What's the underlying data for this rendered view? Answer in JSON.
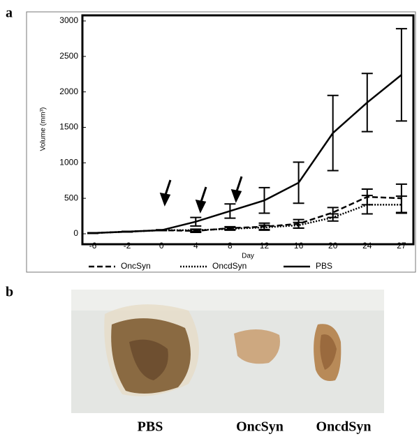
{
  "panel_labels": [
    "a",
    "b"
  ],
  "chart_data": {
    "type": "line",
    "x_label": "Day",
    "y_label": "Volume (mm³)",
    "categories": [
      "-6",
      "-2",
      "0",
      "4",
      "8",
      "12",
      "16",
      "20",
      "24",
      "27"
    ],
    "ylim": [
      0,
      3000
    ],
    "yticks": [
      0,
      500,
      1000,
      1500,
      2000,
      2500,
      3000
    ],
    "series": [
      {
        "name": "OncSyn",
        "color": "#000000",
        "style": "dashed",
        "values": [
          10,
          30,
          50,
          40,
          80,
          100,
          140,
          300,
          520,
          500
        ],
        "errors": [
          5,
          5,
          5,
          20,
          20,
          50,
          60,
          70,
          110,
          200
        ]
      },
      {
        "name": "OncdSyn",
        "color": "#000000",
        "style": "dotted",
        "values": [
          10,
          30,
          50,
          50,
          70,
          90,
          120,
          230,
          410,
          410
        ],
        "errors": [
          5,
          5,
          5,
          15,
          20,
          30,
          40,
          50,
          130,
          120
        ]
      },
      {
        "name": "PBS",
        "color": "#000000",
        "style": "solid",
        "values": [
          10,
          30,
          50,
          170,
          320,
          470,
          720,
          1420,
          1850,
          2240
        ],
        "errors": [
          5,
          5,
          5,
          60,
          100,
          180,
          290,
          530,
          410,
          650
        ]
      }
    ]
  },
  "photo": {
    "labels": [
      "PBS",
      "OncSyn",
      "OncdSyn"
    ]
  }
}
